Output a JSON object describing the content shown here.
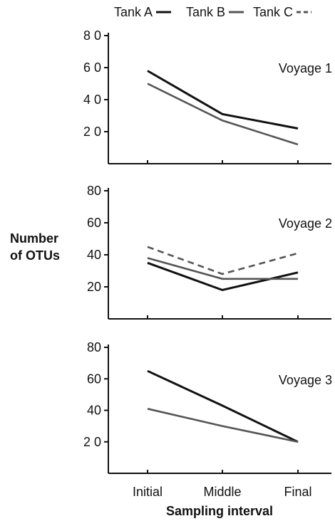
{
  "chart_data": {
    "type": "line",
    "legend": {
      "placement": "top",
      "entries": [
        {
          "name": "Tank A",
          "color": "#111111",
          "dash": "solid"
        },
        {
          "name": "Tank B",
          "color": "#555555",
          "dash": "solid"
        },
        {
          "name": "Tank C",
          "color": "#555555",
          "dash": "dashed"
        }
      ]
    },
    "ylabel_line1": "Number",
    "ylabel_line2": "of OTUs",
    "xlabel": "Sampling interval",
    "categories": [
      "Initial",
      "Middle",
      "Final"
    ],
    "yticks": [
      {
        "value": 20,
        "label": "20"
      },
      {
        "value": 40,
        "label": "40"
      },
      {
        "value": 60,
        "label": "60"
      },
      {
        "value": 80,
        "label": "80"
      }
    ],
    "ylim": [
      0,
      80
    ],
    "grid": false,
    "panels": [
      {
        "label": "Voyage 1",
        "tick_labels": [
          "2 0",
          "4 0",
          "6 0",
          "8 0"
        ],
        "series": [
          {
            "name": "Tank A",
            "values": [
              58,
              31,
              22
            ]
          },
          {
            "name": "Tank B",
            "values": [
              50,
              27,
              12
            ]
          }
        ]
      },
      {
        "label": "Voyage 2",
        "tick_labels": [
          "20",
          "40",
          "60",
          "80"
        ],
        "series": [
          {
            "name": "Tank A",
            "values": [
              35,
              18,
              29
            ]
          },
          {
            "name": "Tank B",
            "values": [
              38,
              25,
              25
            ]
          },
          {
            "name": "Tank C",
            "values": [
              45,
              28,
              41
            ]
          }
        ]
      },
      {
        "label": "Voyage 3",
        "tick_labels": [
          "2 0",
          "40",
          "60",
          "80"
        ],
        "series": [
          {
            "name": "Tank A",
            "values": [
              65,
              43,
              20
            ]
          },
          {
            "name": "Tank B",
            "values": [
              41,
              30,
              20
            ]
          }
        ]
      }
    ]
  }
}
